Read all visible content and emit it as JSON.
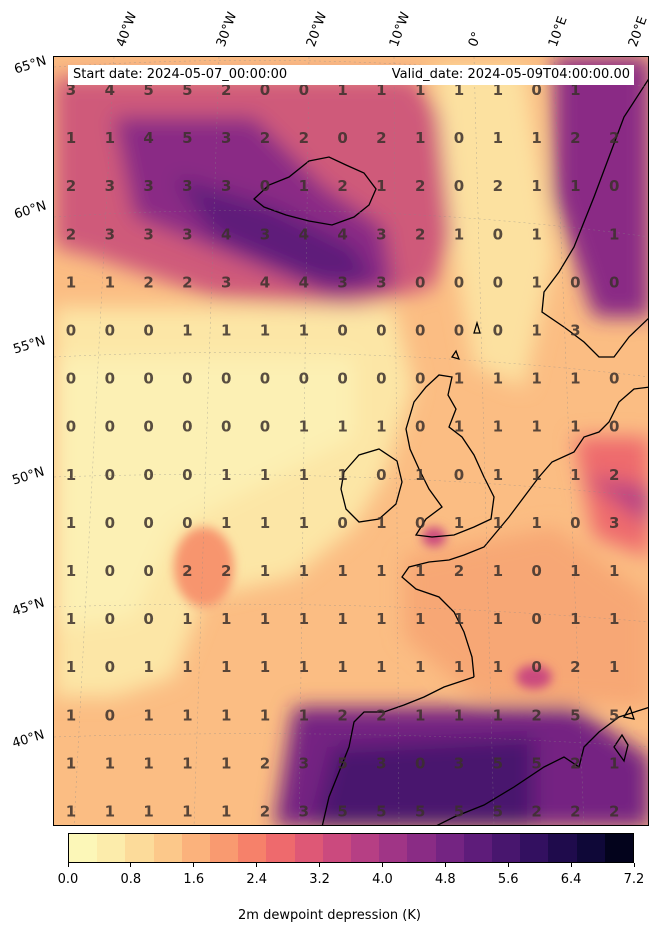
{
  "header": {
    "start_date": "Start date: 2024-05-07_00:00:00",
    "valid_date": "Valid_date: 2024-05-09T04:00:00.00"
  },
  "lat_labels": [
    "65°N",
    "60°N",
    "55°N",
    "50°N",
    "45°N",
    "40°N"
  ],
  "lon_labels": [
    "40°W",
    "30°W",
    "20°W",
    "10°W",
    "0°",
    "10°E",
    "20°E"
  ],
  "colorbar": {
    "ticks": [
      "0.0",
      "0.8",
      "1.6",
      "2.4",
      "3.2",
      "4.0",
      "4.8",
      "5.6",
      "6.4",
      "7.2"
    ],
    "label": "2m dewpoint depression (K)",
    "min": 0.0,
    "max": 7.2,
    "colors": [
      "#fcf7b8",
      "#fcecab",
      "#fcdb9a",
      "#fcc88a",
      "#fbb27c",
      "#f99a70",
      "#f6816a",
      "#ee6a6d",
      "#de5876",
      "#cb4a7e",
      "#b63f84",
      "#a03586",
      "#8a2c85",
      "#742482",
      "#5e1c7a",
      "#48166e",
      "#331060",
      "#1f0b4c",
      "#0f0838",
      "#03031c"
    ]
  },
  "grid_values": [
    [
      "3",
      "4",
      "5",
      "5",
      "2",
      "0",
      "0",
      "1",
      "1",
      "1",
      "1",
      "1",
      "0",
      "1",
      ""
    ],
    [
      "1",
      "1",
      "4",
      "5",
      "3",
      "2",
      "2",
      "0",
      "2",
      "1",
      "0",
      "1",
      "1",
      "2",
      "2"
    ],
    [
      "2",
      "3",
      "3",
      "3",
      "3",
      "0",
      "1",
      "2",
      "1",
      "2",
      "0",
      "2",
      "1",
      "1",
      "0"
    ],
    [
      "2",
      "3",
      "3",
      "3",
      "4",
      "3",
      "4",
      "4",
      "3",
      "2",
      "1",
      "0",
      "1",
      "",
      "1"
    ],
    [
      "1",
      "1",
      "2",
      "2",
      "3",
      "4",
      "4",
      "3",
      "3",
      "0",
      "0",
      "0",
      "1",
      "0",
      "0"
    ],
    [
      "0",
      "0",
      "0",
      "1",
      "1",
      "1",
      "1",
      "0",
      "0",
      "0",
      "0",
      "0",
      "1",
      "3",
      ""
    ],
    [
      "0",
      "0",
      "0",
      "0",
      "0",
      "0",
      "0",
      "0",
      "0",
      "0",
      "1",
      "1",
      "1",
      "1",
      "0"
    ],
    [
      "0",
      "0",
      "0",
      "0",
      "0",
      "0",
      "1",
      "1",
      "1",
      "0",
      "1",
      "1",
      "1",
      "1",
      "0"
    ],
    [
      "1",
      "0",
      "0",
      "0",
      "1",
      "1",
      "1",
      "1",
      "0",
      "1",
      "0",
      "1",
      "1",
      "1",
      "2"
    ],
    [
      "1",
      "0",
      "0",
      "0",
      "1",
      "1",
      "1",
      "0",
      "1",
      "0",
      "1",
      "1",
      "1",
      "0",
      "3"
    ],
    [
      "1",
      "0",
      "0",
      "2",
      "2",
      "1",
      "1",
      "1",
      "1",
      "1",
      "2",
      "1",
      "0",
      "1",
      "1"
    ],
    [
      "1",
      "0",
      "0",
      "1",
      "1",
      "1",
      "1",
      "1",
      "1",
      "1",
      "1",
      "1",
      "0",
      "1",
      "1"
    ],
    [
      "1",
      "0",
      "1",
      "1",
      "1",
      "1",
      "1",
      "1",
      "1",
      "1",
      "1",
      "1",
      "0",
      "2",
      "1"
    ],
    [
      "1",
      "0",
      "1",
      "1",
      "1",
      "1",
      "1",
      "2",
      "2",
      "1",
      "1",
      "1",
      "2",
      "5",
      "5"
    ],
    [
      "1",
      "1",
      "1",
      "1",
      "1",
      "2",
      "3",
      "5",
      "3",
      "0",
      "3",
      "5",
      "5",
      "2",
      "1"
    ],
    [
      "1",
      "1",
      "1",
      "1",
      "1",
      "2",
      "3",
      "5",
      "5",
      "5",
      "5",
      "5",
      "2",
      "2",
      "2"
    ]
  ]
}
